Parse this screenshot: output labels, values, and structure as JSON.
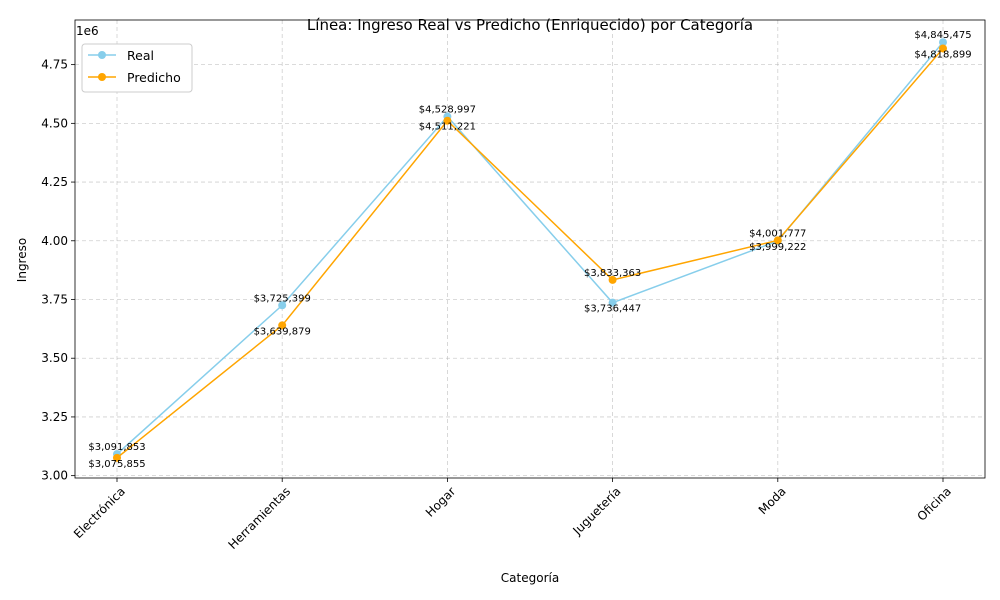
{
  "chart_data": {
    "type": "line",
    "title": "Línea: Ingreso Real vs Predicho (Enriquecido) por Categoría",
    "xlabel": "Categoría",
    "ylabel": "Ingreso",
    "y_offset_label": "1e6",
    "categories": [
      "Electrónica",
      "Herramientas",
      "Hogar",
      "Juguetería",
      "Moda",
      "Oficina"
    ],
    "ylim": [
      2.99,
      4.94
    ],
    "y_ticks": [
      3.0,
      3.25,
      3.5,
      3.75,
      4.0,
      4.25,
      4.5,
      4.75
    ],
    "y_tick_labels": [
      "3.00",
      "3.25",
      "3.50",
      "3.75",
      "4.00",
      "4.25",
      "4.50",
      "4.75"
    ],
    "grid": true,
    "legend_position": "top-left",
    "series": [
      {
        "name": "Real",
        "color": "#87ceeb",
        "values": [
          3091853,
          3725399,
          4528997,
          3736447,
          3999222,
          4845475
        ],
        "labels": [
          "$3,091,853",
          "$3,725,399",
          "$4,528,997",
          "$3,736,447",
          "$3,999,222",
          "$4,845,475"
        ]
      },
      {
        "name": "Predicho",
        "color": "#ffa500",
        "values": [
          3075855,
          3639879,
          4511221,
          3833363,
          4001777,
          4818899
        ],
        "labels": [
          "$3,075,855",
          "$3,639,879",
          "$4,511,221",
          "$3,833,363",
          "$4,001,777",
          "$4,818,899"
        ]
      }
    ]
  }
}
